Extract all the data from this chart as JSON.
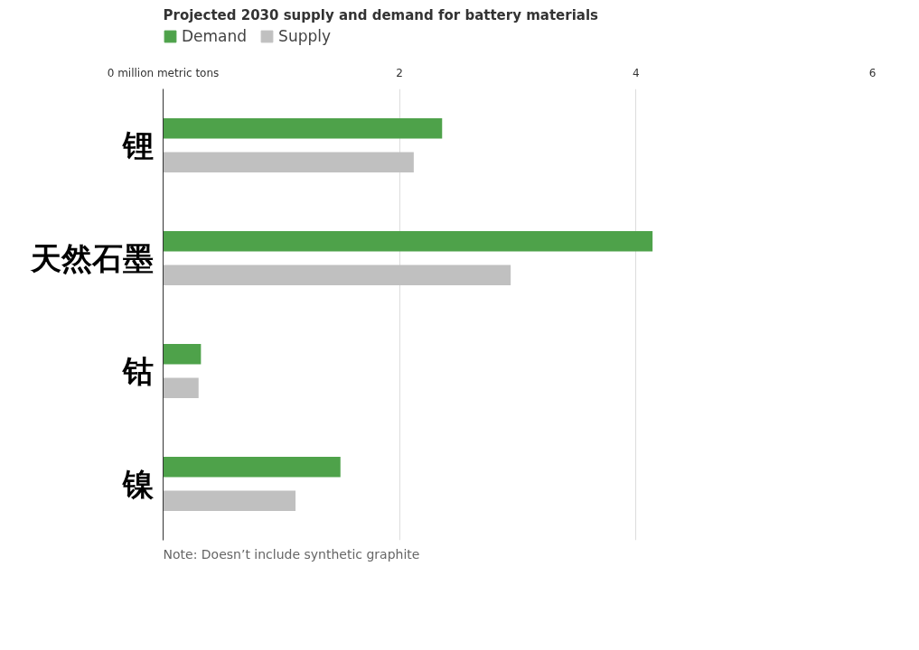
{
  "chart_data": {
    "type": "bar",
    "orientation": "horizontal",
    "title": "Projected 2030 supply and demand for battery materials",
    "categories": [
      "锂",
      "天然石墨",
      "钴",
      "镍"
    ],
    "series": [
      {
        "name": "Demand",
        "color": "#4ea24a",
        "values": [
          2.36,
          4.14,
          0.32,
          1.5
        ]
      },
      {
        "name": "Supply",
        "color": "#c0c0c0",
        "values": [
          2.12,
          2.94,
          0.3,
          1.12
        ]
      }
    ],
    "xlim": [
      0,
      6
    ],
    "xticks": [
      {
        "value": 0,
        "label": "0 million metric tons"
      },
      2,
      4,
      6
    ],
    "grid": "x",
    "legend": "top left",
    "annotations": [
      "Note: Doesn’t include synthetic graphite"
    ]
  }
}
